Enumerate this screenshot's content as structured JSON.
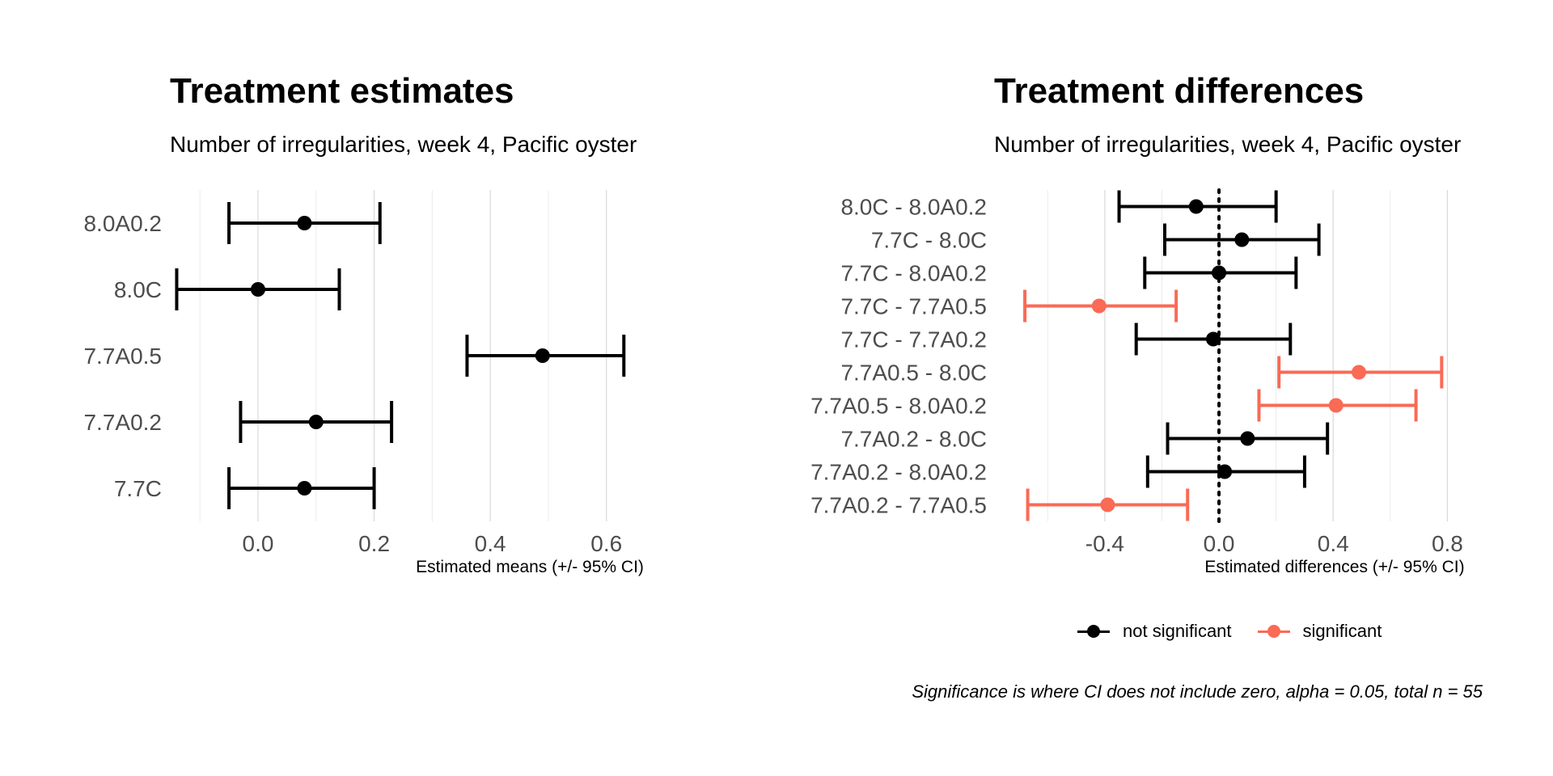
{
  "chart_data": [
    {
      "type": "errorbar",
      "title": "Treatment estimates",
      "subtitle": "Number of irregularities, week 4, Pacific oyster",
      "xlabel": "Estimated means (+/- 95% CI)",
      "ylabel": "",
      "xlim": [
        -0.11,
        0.67
      ],
      "xticks": [
        0.0,
        0.2,
        0.4,
        0.6
      ],
      "tick_labels": [
        "0.0",
        "0.2",
        "0.4",
        "0.6"
      ],
      "categories": [
        "8.0A0.2",
        "8.0C",
        "7.7A0.5",
        "7.7A0.2",
        "7.7C"
      ],
      "estimates": [
        0.08,
        0.0,
        0.49,
        0.1,
        0.08
      ],
      "lower": [
        -0.05,
        -0.14,
        0.36,
        -0.03,
        -0.05
      ],
      "upper": [
        0.21,
        0.14,
        0.63,
        0.23,
        0.2
      ],
      "grid": "vertical"
    },
    {
      "type": "errorbar",
      "title": "Treatment differences",
      "subtitle": "Number of irregularities, week 4, Pacific oyster",
      "xlabel": "Estimated differences (+/- 95% CI)",
      "ylabel": "",
      "xlim": [
        -0.7,
        0.83
      ],
      "xticks": [
        -0.4,
        0.0,
        0.4,
        0.8
      ],
      "tick_labels": [
        "-0.4",
        "0.0",
        "0.4",
        "0.8"
      ],
      "reference_line": 0,
      "categories": [
        "8.0C - 8.0A0.2",
        "7.7C - 8.0C",
        "7.7C - 8.0A0.2",
        "7.7C - 7.7A0.5",
        "7.7C - 7.7A0.2",
        "7.7A0.5 - 8.0C",
        "7.7A0.5 - 8.0A0.2",
        "7.7A0.2 - 8.0C",
        "7.7A0.2 - 8.0A0.2",
        "7.7A0.2 - 7.7A0.5"
      ],
      "estimates": [
        -0.08,
        0.08,
        0.0,
        -0.42,
        -0.02,
        0.49,
        0.41,
        0.1,
        0.02,
        -0.39
      ],
      "lower": [
        -0.35,
        -0.19,
        -0.26,
        -0.68,
        -0.29,
        0.21,
        0.14,
        -0.18,
        -0.25,
        -0.67
      ],
      "upper": [
        0.2,
        0.35,
        0.27,
        -0.15,
        0.25,
        0.78,
        0.69,
        0.38,
        0.3,
        -0.11
      ],
      "significant": [
        false,
        false,
        false,
        true,
        false,
        true,
        true,
        false,
        false,
        true
      ],
      "legend": {
        "position": "bottom",
        "entries": [
          {
            "label": "not significant",
            "color": "#000000"
          },
          {
            "label": "significant",
            "color": "#fa6a55"
          }
        ]
      },
      "grid": "vertical",
      "caption": "Significance is where CI does not include zero, alpha = 0.05, total n = 55"
    }
  ]
}
